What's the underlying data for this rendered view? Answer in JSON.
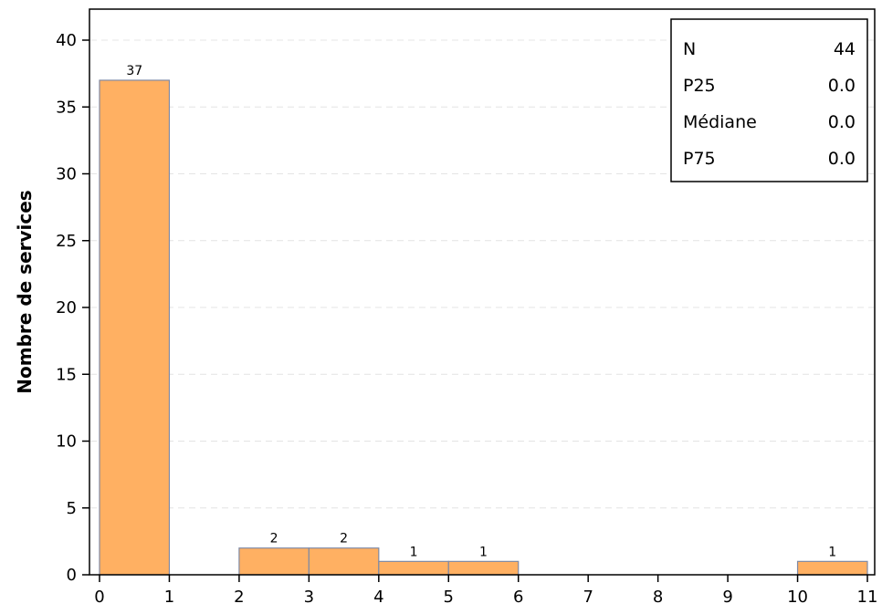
{
  "chart_data": {
    "type": "bar",
    "subtype": "histogram",
    "ylabel": "Nombre de services",
    "xlabel": "",
    "xlim": [
      0,
      11
    ],
    "ylim": [
      0,
      42
    ],
    "x_ticks": [
      "0",
      "1",
      "2",
      "3",
      "4",
      "5",
      "6",
      "7",
      "8",
      "9",
      "10",
      "11"
    ],
    "y_ticks": [
      "0",
      "5",
      "10",
      "15",
      "20",
      "25",
      "30",
      "35",
      "40"
    ],
    "grid": "horizontal dashed",
    "bins": [
      {
        "start": 0,
        "end": 1,
        "value": 37,
        "label": "37"
      },
      {
        "start": 2,
        "end": 3,
        "value": 2,
        "label": "2"
      },
      {
        "start": 3,
        "end": 4,
        "value": 2,
        "label": "2"
      },
      {
        "start": 4,
        "end": 5,
        "value": 1,
        "label": "1"
      },
      {
        "start": 5,
        "end": 6,
        "value": 1,
        "label": "1"
      },
      {
        "start": 10,
        "end": 11,
        "value": 1,
        "label": "1"
      }
    ],
    "bar_color": "#FFB062",
    "bar_edge_color": "#7F8AA5",
    "stats_placement": "top-right",
    "stats": [
      {
        "label": "N",
        "value": "44"
      },
      {
        "label": "P25",
        "value": "0.0"
      },
      {
        "label": "Médiane",
        "value": "0.0"
      },
      {
        "label": "P75",
        "value": "0.0"
      }
    ]
  }
}
